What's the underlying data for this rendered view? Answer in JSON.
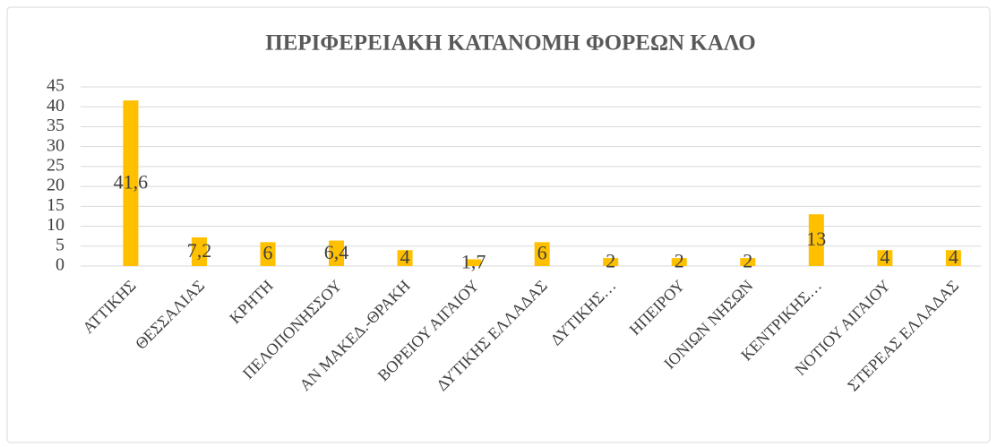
{
  "chart_data": {
    "type": "bar",
    "title": "ΠΕΡΙΦΕΡΕΙΑΚΗ ΚΑΤΑΝΟΜΗ ΦΟΡΕΩΝ ΚΑΛΟ",
    "categories": [
      "ΑΤΤΙΚΗΣ",
      "ΘΕΣΣΑΛΙΑΣ",
      "ΚΡΗΤΗ",
      "ΠΕΛΟΠΟΝΗΣΣΟΥ",
      "ΑΝ ΜΑΚΕΔ.-ΘΡΑΚΗ",
      "ΒΟΡΕΙΟΥ ΑΙΓΑΙΟΥ",
      "ΔΥΤΙΚΗΣ ΕΛΛΑΔΑΣ",
      "ΔΥΤΙΚΗΣ…",
      "ΗΠΕΙΡΟΥ",
      "ΙΟΝΙΩΝ ΝΗΣΩΝ",
      "ΚΕΝΤΡΙΚΗΣ…",
      "ΝΟΤΙΟΥ ΑΙΓΑΙΟΥ",
      "ΣΤΕΡΕΑΣ ΕΛΛΑΔΑΣ"
    ],
    "values": [
      41.6,
      7.2,
      6,
      6.4,
      4,
      1.7,
      6,
      2,
      2,
      2,
      13,
      4,
      4
    ],
    "value_labels": [
      "41,6",
      "7,2",
      "6",
      "6,4",
      "4",
      "1,7",
      "6",
      "2",
      "2",
      "2",
      "13",
      "4",
      "4"
    ],
    "color": "#ffc000",
    "ylim": [
      0,
      45
    ],
    "yticks": [
      0,
      5,
      10,
      15,
      20,
      25,
      30,
      35,
      40,
      45
    ],
    "grid": true
  }
}
